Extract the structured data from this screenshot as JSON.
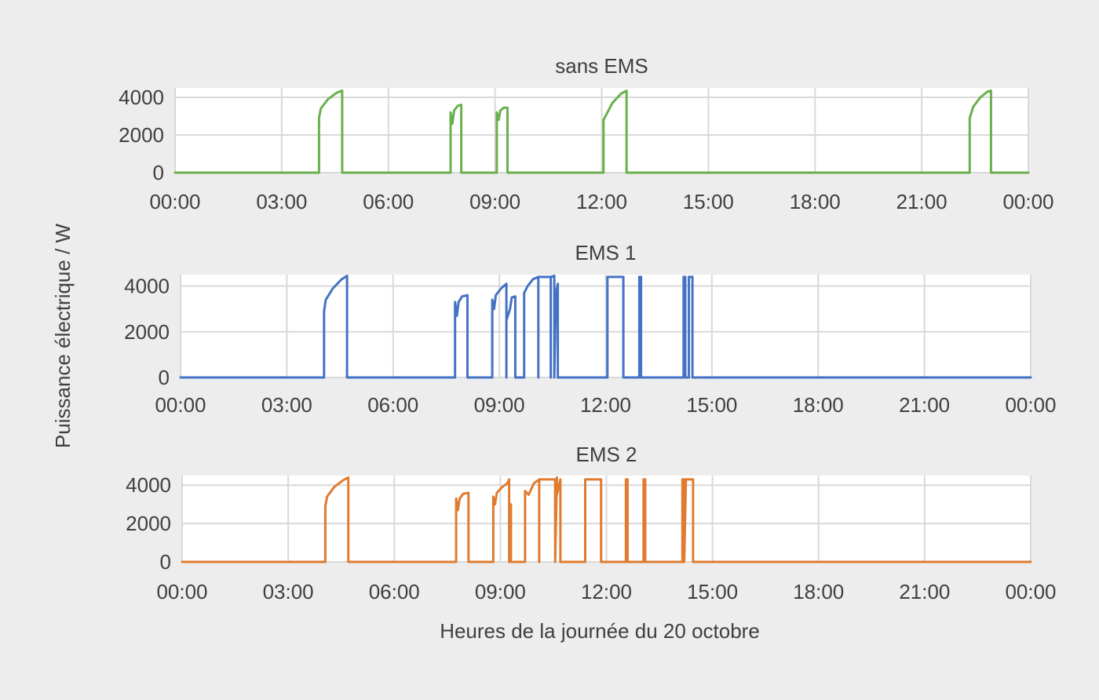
{
  "ylabel": "Puissance électrique / W",
  "xlabel": "Heures de la journée du 20 octobre",
  "colors": {
    "background": "#ededed",
    "grid": "#d9d9d9",
    "text": "#3f3f3f"
  },
  "chart_data": [
    {
      "type": "line",
      "title": "sans EMS",
      "color": "#6ab04c",
      "xlim": [
        0,
        24
      ],
      "ylim": [
        0,
        4500
      ],
      "x_ticks": [
        "00:00",
        "03:00",
        "06:00",
        "09:00",
        "12:00",
        "15:00",
        "18:00",
        "21:00",
        "00:00"
      ],
      "y_ticks": [
        "4000",
        "2000",
        "0"
      ],
      "series": [
        {
          "points": [
            [
              0,
              0
            ],
            [
              4.05,
              0
            ],
            [
              4.05,
              2900
            ],
            [
              4.1,
              3400
            ],
            [
              4.3,
              3900
            ],
            [
              4.55,
              4250
            ],
            [
              4.7,
              4350
            ],
            [
              4.7,
              0
            ],
            [
              7.75,
              0
            ],
            [
              7.75,
              3200
            ],
            [
              7.8,
              2600
            ],
            [
              7.85,
              3300
            ],
            [
              7.95,
              3550
            ],
            [
              8.05,
              3600
            ],
            [
              8.05,
              0
            ],
            [
              9.05,
              0
            ],
            [
              9.05,
              3200
            ],
            [
              9.1,
              2800
            ],
            [
              9.15,
              3300
            ],
            [
              9.25,
              3450
            ],
            [
              9.35,
              3450
            ],
            [
              9.35,
              0
            ],
            [
              12.05,
              0
            ],
            [
              12.05,
              2800
            ],
            [
              12.3,
              3700
            ],
            [
              12.55,
              4200
            ],
            [
              12.7,
              4350
            ],
            [
              12.7,
              0
            ],
            [
              22.35,
              0
            ],
            [
              22.35,
              2900
            ],
            [
              22.45,
              3500
            ],
            [
              22.65,
              4000
            ],
            [
              22.85,
              4300
            ],
            [
              22.95,
              4350
            ],
            [
              22.95,
              0
            ],
            [
              24,
              0
            ]
          ]
        }
      ]
    },
    {
      "type": "line",
      "title": "EMS 1",
      "color": "#4472c4",
      "xlim": [
        0,
        24
      ],
      "ylim": [
        0,
        4500
      ],
      "x_ticks": [
        "00:00",
        "03:00",
        "06:00",
        "09:00",
        "12:00",
        "15:00",
        "18:00",
        "21:00",
        "00:00"
      ],
      "y_ticks": [
        "4000",
        "2000",
        "0"
      ],
      "series": [
        {
          "points": [
            [
              0,
              0
            ],
            [
              4.05,
              0
            ],
            [
              4.05,
              2900
            ],
            [
              4.1,
              3400
            ],
            [
              4.3,
              3900
            ],
            [
              4.55,
              4300
            ],
            [
              4.7,
              4450
            ],
            [
              4.7,
              0
            ],
            [
              7.75,
              0
            ],
            [
              7.75,
              3300
            ],
            [
              7.8,
              2700
            ],
            [
              7.85,
              3300
            ],
            [
              7.95,
              3550
            ],
            [
              8.1,
              3600
            ],
            [
              8.1,
              0
            ],
            [
              8.8,
              0
            ],
            [
              8.8,
              3400
            ],
            [
              8.85,
              3000
            ],
            [
              8.9,
              3600
            ],
            [
              9.05,
              3900
            ],
            [
              9.2,
              4100
            ],
            [
              9.2,
              0
            ],
            [
              9.2,
              2500
            ],
            [
              9.3,
              3000
            ],
            [
              9.35,
              3500
            ],
            [
              9.45,
              3550
            ],
            [
              9.45,
              0
            ],
            [
              9.7,
              0
            ],
            [
              9.7,
              3700
            ],
            [
              9.8,
              4000
            ],
            [
              9.95,
              4300
            ],
            [
              10.1,
              4400
            ],
            [
              10.1,
              0
            ],
            [
              10.1,
              4400
            ],
            [
              10.45,
              4400
            ],
            [
              10.45,
              0
            ],
            [
              10.45,
              4400
            ],
            [
              10.55,
              4450
            ],
            [
              10.55,
              0
            ],
            [
              10.6,
              3700
            ],
            [
              10.65,
              4100
            ],
            [
              10.65,
              0
            ],
            [
              12.05,
              0
            ],
            [
              12.05,
              4400
            ],
            [
              12.5,
              4400
            ],
            [
              12.5,
              0
            ],
            [
              12.95,
              0
            ],
            [
              12.95,
              4400
            ],
            [
              13,
              4400
            ],
            [
              13,
              0
            ],
            [
              14.2,
              0
            ],
            [
              14.2,
              4400
            ],
            [
              14.25,
              4400
            ],
            [
              14.25,
              0
            ],
            [
              14.35,
              0
            ],
            [
              14.35,
              4400
            ],
            [
              14.45,
              4400
            ],
            [
              14.45,
              0
            ],
            [
              24,
              0
            ]
          ]
        }
      ]
    },
    {
      "type": "line",
      "title": "EMS 2",
      "color": "#e07b30",
      "xlim": [
        0,
        24
      ],
      "ylim": [
        0,
        4500
      ],
      "x_ticks": [
        "00:00",
        "03:00",
        "06:00",
        "09:00",
        "12:00",
        "15:00",
        "18:00",
        "21:00",
        "00:00"
      ],
      "y_ticks": [
        "4000",
        "2000",
        "0"
      ],
      "series": [
        {
          "points": [
            [
              0,
              0
            ],
            [
              4.05,
              0
            ],
            [
              4.05,
              2900
            ],
            [
              4.1,
              3400
            ],
            [
              4.3,
              3900
            ],
            [
              4.55,
              4250
            ],
            [
              4.7,
              4400
            ],
            [
              4.7,
              0
            ],
            [
              7.75,
              0
            ],
            [
              7.75,
              3300
            ],
            [
              7.8,
              2700
            ],
            [
              7.85,
              3300
            ],
            [
              7.95,
              3550
            ],
            [
              8.1,
              3600
            ],
            [
              8.1,
              0
            ],
            [
              8.8,
              0
            ],
            [
              8.8,
              3400
            ],
            [
              8.85,
              3000
            ],
            [
              8.9,
              3600
            ],
            [
              9.05,
              3900
            ],
            [
              9.2,
              4100
            ],
            [
              9.25,
              4300
            ],
            [
              9.25,
              0
            ],
            [
              9.25,
              3000
            ],
            [
              9.3,
              3000
            ],
            [
              9.3,
              0
            ],
            [
              9.7,
              0
            ],
            [
              9.7,
              3700
            ],
            [
              9.8,
              3500
            ],
            [
              9.95,
              4100
            ],
            [
              10.1,
              4300
            ],
            [
              10.1,
              0
            ],
            [
              10.1,
              4300
            ],
            [
              10.55,
              4300
            ],
            [
              10.55,
              0
            ],
            [
              10.6,
              4400
            ],
            [
              10.6,
              3500
            ],
            [
              10.7,
              4300
            ],
            [
              10.7,
              0
            ],
            [
              11.4,
              0
            ],
            [
              11.4,
              4300
            ],
            [
              11.85,
              4300
            ],
            [
              11.85,
              0
            ],
            [
              12.55,
              0
            ],
            [
              12.55,
              4300
            ],
            [
              12.6,
              4300
            ],
            [
              12.6,
              0
            ],
            [
              13.05,
              0
            ],
            [
              13.05,
              4300
            ],
            [
              13.1,
              4300
            ],
            [
              13.1,
              0
            ],
            [
              14.15,
              0
            ],
            [
              14.15,
              4300
            ],
            [
              14.2,
              4300
            ],
            [
              14.2,
              0
            ],
            [
              14.25,
              4300
            ],
            [
              14.45,
              4300
            ],
            [
              14.45,
              0
            ],
            [
              24,
              0
            ]
          ]
        }
      ]
    }
  ]
}
